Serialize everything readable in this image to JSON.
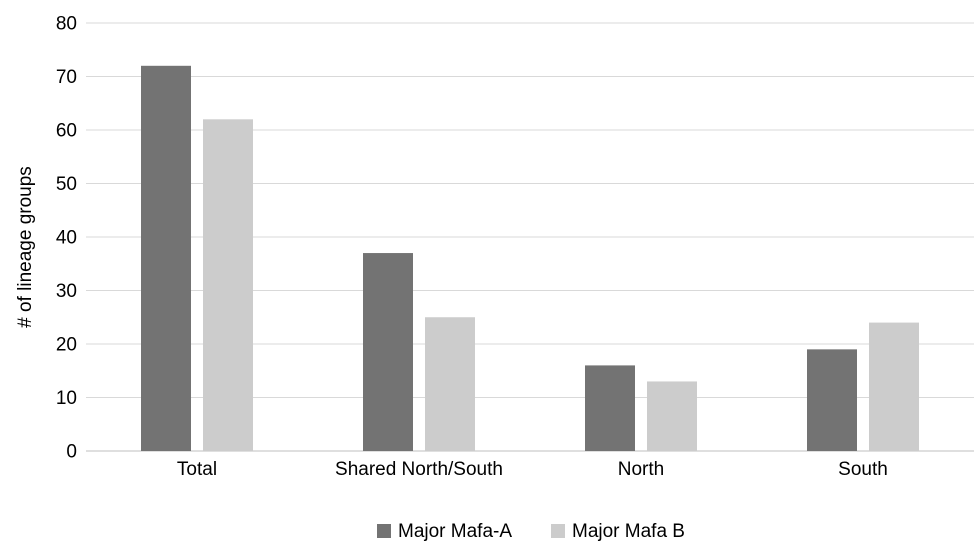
{
  "chart_data": {
    "type": "bar",
    "title": "",
    "xlabel": "",
    "ylabel": "# of lineage groups",
    "ylim": [
      0,
      80
    ],
    "yticks": [
      0,
      10,
      20,
      30,
      40,
      50,
      60,
      70,
      80
    ],
    "grid": true,
    "legend_position": "bottom",
    "categories": [
      "Total",
      "Shared North/South",
      "North",
      "South"
    ],
    "series": [
      {
        "name": "Major Mafa-A",
        "color": "#737373",
        "values": [
          72,
          37,
          16,
          19
        ]
      },
      {
        "name": "Major Mafa B",
        "color": "#cccccc",
        "values": [
          62,
          25,
          13,
          24
        ]
      }
    ]
  }
}
